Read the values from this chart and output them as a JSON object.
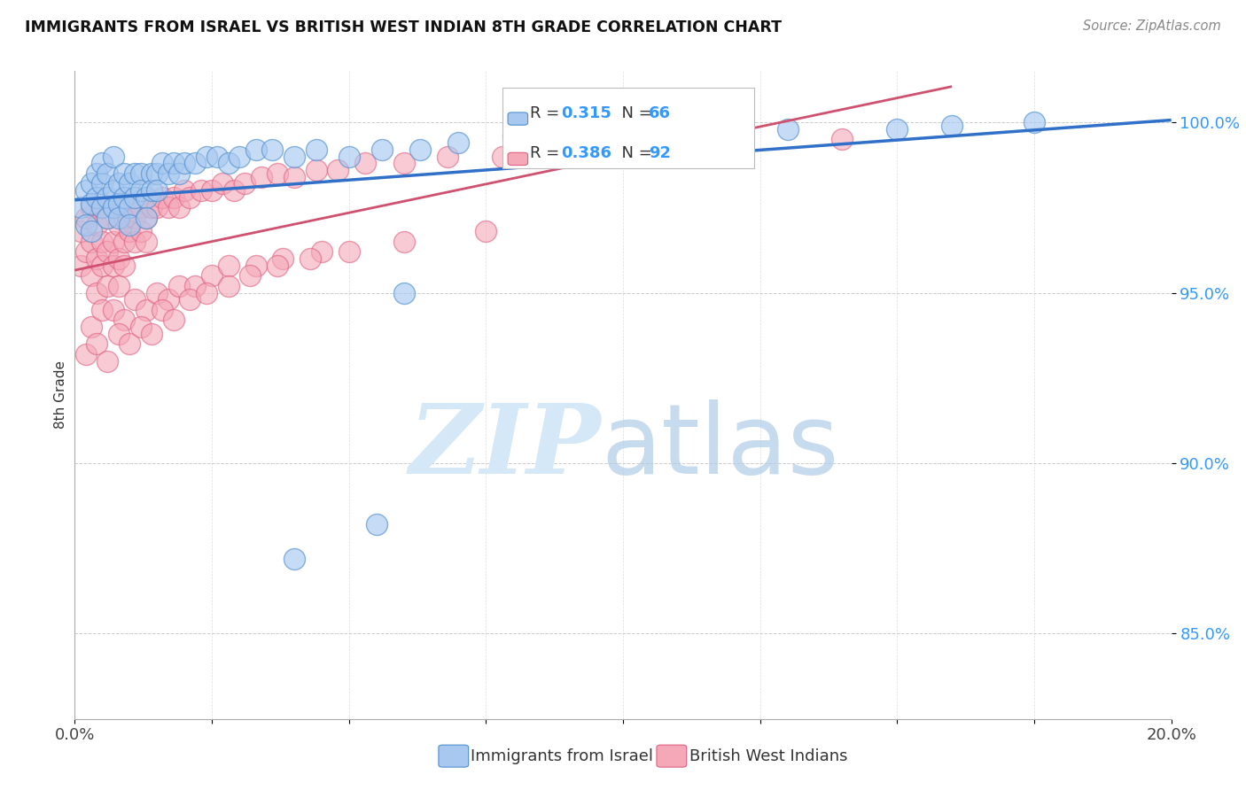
{
  "title": "IMMIGRANTS FROM ISRAEL VS BRITISH WEST INDIAN 8TH GRADE CORRELATION CHART",
  "source": "Source: ZipAtlas.com",
  "ylabel": "8th Grade",
  "ytick_labels": [
    "85.0%",
    "90.0%",
    "95.0%",
    "100.0%"
  ],
  "ytick_values": [
    0.85,
    0.9,
    0.95,
    1.0
  ],
  "xlim": [
    0.0,
    0.2
  ],
  "ylim": [
    0.825,
    1.015
  ],
  "legend_blue_r": "0.315",
  "legend_blue_n": "66",
  "legend_pink_r": "0.386",
  "legend_pink_n": "92",
  "blue_color": "#A8C8F0",
  "pink_color": "#F4A8B8",
  "blue_edge_color": "#5090D0",
  "pink_edge_color": "#E06080",
  "blue_line_color": "#3070C8",
  "pink_line_color": "#D05070",
  "blue_scatter_x": [
    0.001,
    0.002,
    0.002,
    0.003,
    0.003,
    0.003,
    0.004,
    0.004,
    0.005,
    0.005,
    0.005,
    0.006,
    0.006,
    0.006,
    0.007,
    0.007,
    0.007,
    0.008,
    0.008,
    0.008,
    0.009,
    0.009,
    0.01,
    0.01,
    0.01,
    0.011,
    0.011,
    0.012,
    0.012,
    0.013,
    0.013,
    0.014,
    0.014,
    0.015,
    0.015,
    0.016,
    0.017,
    0.018,
    0.019,
    0.02,
    0.022,
    0.024,
    0.026,
    0.028,
    0.03,
    0.033,
    0.036,
    0.04,
    0.044,
    0.05,
    0.056,
    0.063,
    0.07,
    0.08,
    0.09,
    0.1,
    0.115,
    0.13,
    0.15,
    0.16,
    0.175,
    0.06,
    0.085,
    0.105,
    0.04,
    0.055
  ],
  "blue_scatter_y": [
    0.975,
    0.98,
    0.97,
    0.982,
    0.976,
    0.968,
    0.985,
    0.978,
    0.982,
    0.975,
    0.988,
    0.978,
    0.972,
    0.985,
    0.98,
    0.975,
    0.99,
    0.982,
    0.976,
    0.972,
    0.985,
    0.978,
    0.982,
    0.975,
    0.97,
    0.985,
    0.978,
    0.985,
    0.98,
    0.978,
    0.972,
    0.985,
    0.98,
    0.985,
    0.98,
    0.988,
    0.985,
    0.988,
    0.985,
    0.988,
    0.988,
    0.99,
    0.99,
    0.988,
    0.99,
    0.992,
    0.992,
    0.99,
    0.992,
    0.99,
    0.992,
    0.992,
    0.994,
    0.996,
    0.996,
    0.996,
    0.997,
    0.998,
    0.998,
    0.999,
    1.0,
    0.95,
    0.995,
    0.997,
    0.872,
    0.882
  ],
  "pink_scatter_x": [
    0.001,
    0.001,
    0.002,
    0.002,
    0.003,
    0.003,
    0.003,
    0.004,
    0.004,
    0.004,
    0.005,
    0.005,
    0.005,
    0.006,
    0.006,
    0.006,
    0.007,
    0.007,
    0.007,
    0.008,
    0.008,
    0.008,
    0.009,
    0.009,
    0.009,
    0.01,
    0.01,
    0.011,
    0.011,
    0.012,
    0.012,
    0.013,
    0.013,
    0.014,
    0.015,
    0.016,
    0.017,
    0.018,
    0.019,
    0.02,
    0.021,
    0.023,
    0.025,
    0.027,
    0.029,
    0.031,
    0.034,
    0.037,
    0.04,
    0.044,
    0.048,
    0.053,
    0.06,
    0.068,
    0.078,
    0.09,
    0.105,
    0.12,
    0.14,
    0.003,
    0.005,
    0.007,
    0.009,
    0.011,
    0.013,
    0.015,
    0.017,
    0.019,
    0.022,
    0.025,
    0.028,
    0.033,
    0.038,
    0.045,
    0.002,
    0.004,
    0.006,
    0.008,
    0.01,
    0.012,
    0.014,
    0.016,
    0.018,
    0.021,
    0.024,
    0.028,
    0.032,
    0.037,
    0.043,
    0.05,
    0.06,
    0.075
  ],
  "pink_scatter_y": [
    0.968,
    0.958,
    0.972,
    0.962,
    0.975,
    0.965,
    0.955,
    0.97,
    0.96,
    0.95,
    0.975,
    0.965,
    0.958,
    0.972,
    0.962,
    0.952,
    0.975,
    0.965,
    0.958,
    0.97,
    0.96,
    0.952,
    0.972,
    0.965,
    0.958,
    0.975,
    0.968,
    0.972,
    0.965,
    0.975,
    0.968,
    0.972,
    0.965,
    0.975,
    0.975,
    0.978,
    0.975,
    0.978,
    0.975,
    0.98,
    0.978,
    0.98,
    0.98,
    0.982,
    0.98,
    0.982,
    0.984,
    0.985,
    0.984,
    0.986,
    0.986,
    0.988,
    0.988,
    0.99,
    0.99,
    0.991,
    0.992,
    0.993,
    0.995,
    0.94,
    0.945,
    0.945,
    0.942,
    0.948,
    0.945,
    0.95,
    0.948,
    0.952,
    0.952,
    0.955,
    0.958,
    0.958,
    0.96,
    0.962,
    0.932,
    0.935,
    0.93,
    0.938,
    0.935,
    0.94,
    0.938,
    0.945,
    0.942,
    0.948,
    0.95,
    0.952,
    0.955,
    0.958,
    0.96,
    0.962,
    0.965,
    0.968
  ]
}
